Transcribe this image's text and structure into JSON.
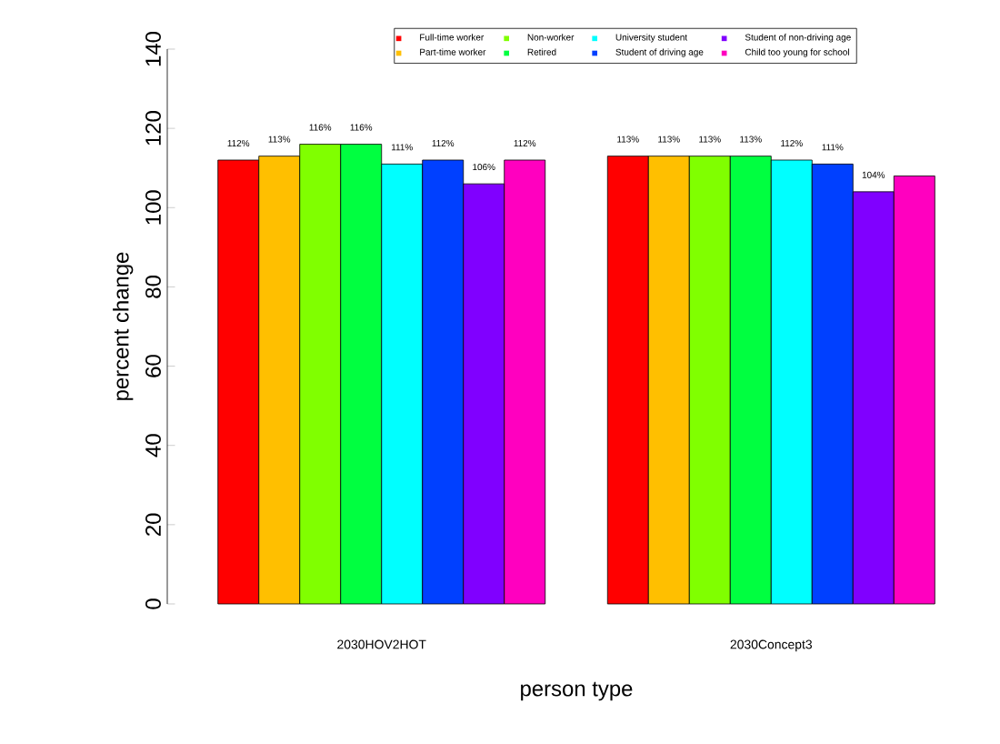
{
  "chart_data": {
    "type": "bar",
    "xlabel": "person type",
    "ylabel": "percent change",
    "categories": [
      "2030HOV2HOT",
      "2030Concept3"
    ],
    "ylim": [
      0,
      140
    ],
    "yticks": [
      0,
      20,
      40,
      60,
      80,
      100,
      120,
      140
    ],
    "legend": "top",
    "grid": false,
    "series": [
      {
        "name": "Full-time worker",
        "color": "#ff0000",
        "values": [
          112,
          113
        ],
        "value_labels": [
          "112%",
          "113%"
        ]
      },
      {
        "name": "Part-time worker",
        "color": "#ffbf00",
        "values": [
          113,
          113
        ],
        "value_labels": [
          "113%",
          "113%"
        ]
      },
      {
        "name": "Non-worker",
        "color": "#80ff00",
        "values": [
          116,
          113
        ],
        "value_labels": [
          "116%",
          "113%"
        ]
      },
      {
        "name": "Retired",
        "color": "#00ff40",
        "values": [
          116,
          113
        ],
        "value_labels": [
          "116%",
          "113%"
        ]
      },
      {
        "name": "University student",
        "color": "#00ffff",
        "values": [
          111,
          112
        ],
        "value_labels": [
          "111%",
          "112%"
        ]
      },
      {
        "name": "Student of driving age",
        "color": "#0040ff",
        "values": [
          112,
          111
        ],
        "value_labels": [
          "112%",
          "111%"
        ]
      },
      {
        "name": "Student of non-driving age",
        "color": "#8000ff",
        "values": [
          106,
          104
        ],
        "value_labels": [
          "106%",
          "104%"
        ]
      },
      {
        "name": "Child too young for school",
        "color": "#ff00bf",
        "values": [
          112,
          108
        ],
        "value_labels": [
          "112%",
          null
        ]
      }
    ]
  }
}
